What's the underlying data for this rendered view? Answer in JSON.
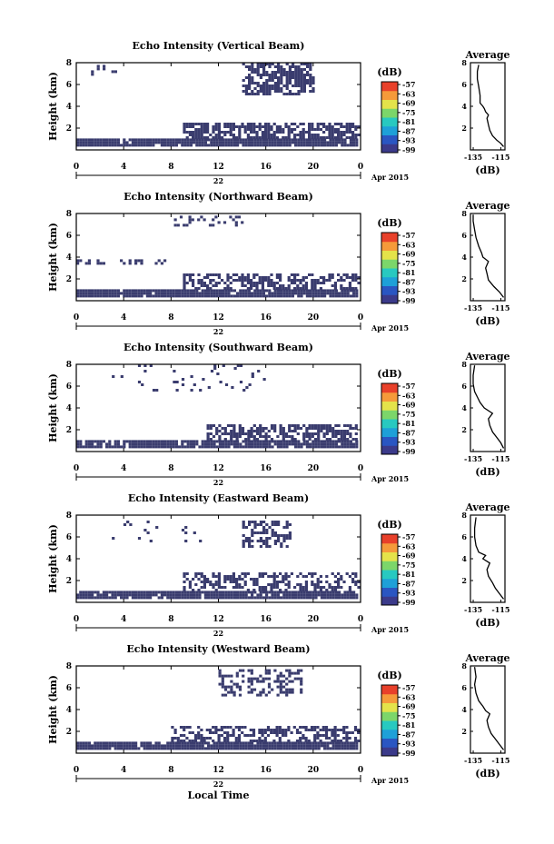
{
  "chart_data": [
    {
      "type": "heatmap",
      "title": "Echo Intensity (Vertical Beam)",
      "ylabel": "Height (km)",
      "xticks": [
        "0",
        "4",
        "8",
        "12",
        "16",
        "20",
        "0"
      ],
      "date_label": "22",
      "month_label": "Apr 2015",
      "ylim": [
        0,
        8
      ],
      "yticks": [
        "2",
        "4",
        "6",
        "8"
      ],
      "colorbar": {
        "unit": "(dB)",
        "ticks": [
          "-57",
          "-63",
          "-69",
          "-75",
          "-81",
          "-87",
          "-93",
          "-99"
        ],
        "range": [
          -99,
          -57
        ]
      },
      "profile": {
        "title": "Average",
        "xlabel": "(dB)",
        "xticks": [
          "-135",
          "-115"
        ],
        "xlim": [
          -137,
          -112
        ],
        "yticks": [
          "2",
          "4",
          "6",
          "8"
        ],
        "points": [
          [
            -113,
            0.3
          ],
          [
            -115,
            0.6
          ],
          [
            -118,
            0.9
          ],
          [
            -121,
            1.3
          ],
          [
            -123,
            1.8
          ],
          [
            -124,
            2.3
          ],
          [
            -125,
            2.9
          ],
          [
            -124,
            3.2
          ],
          [
            -126,
            3.5
          ],
          [
            -127,
            3.8
          ],
          [
            -128,
            4.0
          ],
          [
            -130,
            4.3
          ],
          [
            -130,
            5.0
          ],
          [
            -131,
            5.8
          ],
          [
            -132,
            6.5
          ],
          [
            -132,
            7.2
          ],
          [
            -131,
            7.8
          ]
        ]
      },
      "echo_layers": [
        {
          "t0": 0,
          "t1": 24,
          "h0": 0.3,
          "h1": 1.0,
          "density": 0.95
        },
        {
          "t0": 9,
          "t1": 24,
          "h0": 1.0,
          "h1": 2.4,
          "density": 0.7
        },
        {
          "t0": 14,
          "t1": 20,
          "h0": 5.0,
          "h1": 7.8,
          "density": 0.65
        },
        {
          "t0": 1,
          "t1": 4,
          "h0": 6.8,
          "h1": 7.8,
          "density": 0.15
        }
      ]
    },
    {
      "type": "heatmap",
      "title": "Echo Intensity (Northward Beam)",
      "ylabel": "Height (km)",
      "xticks": [
        "0",
        "4",
        "8",
        "12",
        "16",
        "20",
        "0"
      ],
      "date_label": "22",
      "month_label": "Apr 2015",
      "ylim": [
        0,
        8
      ],
      "yticks": [
        "2",
        "4",
        "6",
        "8"
      ],
      "colorbar": {
        "unit": "(dB)",
        "ticks": [
          "-57",
          "-63",
          "-69",
          "-75",
          "-81",
          "-87",
          "-93",
          "-99"
        ],
        "range": [
          -99,
          -57
        ]
      },
      "profile": {
        "title": "Average",
        "xlabel": "(dB)",
        "xticks": [
          "-135",
          "-115"
        ],
        "xlim": [
          -137,
          -112
        ],
        "yticks": [
          "2",
          "4",
          "6",
          "8"
        ],
        "points": [
          [
            -113,
            0.3
          ],
          [
            -116,
            0.8
          ],
          [
            -120,
            1.3
          ],
          [
            -124,
            1.9
          ],
          [
            -125,
            2.5
          ],
          [
            -126,
            3.0
          ],
          [
            -124,
            3.6
          ],
          [
            -128,
            4.0
          ],
          [
            -129,
            4.4
          ],
          [
            -131,
            5.0
          ],
          [
            -133,
            5.8
          ],
          [
            -134,
            6.5
          ],
          [
            -135,
            7.3
          ],
          [
            -135,
            7.9
          ]
        ]
      },
      "echo_layers": [
        {
          "t0": 0,
          "t1": 24,
          "h0": 0.3,
          "h1": 1.0,
          "density": 0.95
        },
        {
          "t0": 9,
          "t1": 24,
          "h0": 1.0,
          "h1": 2.3,
          "density": 0.55
        },
        {
          "t0": 0,
          "t1": 8,
          "h0": 3.3,
          "h1": 3.8,
          "density": 0.25
        },
        {
          "t0": 8,
          "t1": 14,
          "h0": 6.8,
          "h1": 7.8,
          "density": 0.3
        }
      ]
    },
    {
      "type": "heatmap",
      "title": "Echo Intensity (Southward Beam)",
      "ylabel": "Height (km)",
      "xticks": [
        "0",
        "4",
        "8",
        "12",
        "16",
        "20",
        "0"
      ],
      "date_label": "22",
      "month_label": "Apr 2015",
      "ylim": [
        0,
        8
      ],
      "yticks": [
        "2",
        "4",
        "6",
        "8"
      ],
      "colorbar": {
        "unit": "(dB)",
        "ticks": [
          "-57",
          "-63",
          "-69",
          "-75",
          "-81",
          "-87",
          "-93",
          "-99"
        ],
        "range": [
          -99,
          -57
        ]
      },
      "profile": {
        "title": "Average",
        "xlabel": "(dB)",
        "xticks": [
          "-135",
          "-115"
        ],
        "xlim": [
          -137,
          -112
        ],
        "yticks": [
          "2",
          "4",
          "6",
          "8"
        ],
        "points": [
          [
            -113,
            0.3
          ],
          [
            -115,
            0.8
          ],
          [
            -118,
            1.3
          ],
          [
            -121,
            1.8
          ],
          [
            -123,
            2.4
          ],
          [
            -124,
            3.0
          ],
          [
            -121,
            3.5
          ],
          [
            -127,
            4.0
          ],
          [
            -130,
            4.5
          ],
          [
            -132,
            5.0
          ],
          [
            -134,
            5.5
          ],
          [
            -135,
            6.2
          ],
          [
            -135,
            7.0
          ],
          [
            -134,
            7.9
          ]
        ]
      },
      "echo_layers": [
        {
          "t0": 0,
          "t1": 24,
          "h0": 0.3,
          "h1": 1.0,
          "density": 0.9
        },
        {
          "t0": 11,
          "t1": 24,
          "h0": 1.0,
          "h1": 2.3,
          "density": 0.6
        },
        {
          "t0": 3,
          "t1": 16,
          "h0": 5.5,
          "h1": 7.8,
          "density": 0.08
        }
      ]
    },
    {
      "type": "heatmap",
      "title": "Echo Intensity (Eastward Beam)",
      "ylabel": "Height (km)",
      "xticks": [
        "0",
        "4",
        "8",
        "12",
        "16",
        "20",
        "0"
      ],
      "date_label": "22",
      "month_label": "Apr 2015",
      "ylim": [
        0,
        8
      ],
      "yticks": [
        "2",
        "4",
        "6",
        "8"
      ],
      "colorbar": {
        "unit": "(dB)",
        "ticks": [
          "-57",
          "-63",
          "-69",
          "-75",
          "-81",
          "-87",
          "-93",
          "-99"
        ],
        "range": [
          -99,
          -57
        ]
      },
      "profile": {
        "title": "Average",
        "xlabel": "(dB)",
        "xticks": [
          "-135",
          "-115"
        ],
        "xlim": [
          -137,
          -112
        ],
        "yticks": [
          "2",
          "4",
          "6",
          "8"
        ],
        "points": [
          [
            -113,
            0.3
          ],
          [
            -116,
            0.8
          ],
          [
            -119,
            1.3
          ],
          [
            -121,
            1.8
          ],
          [
            -124,
            2.4
          ],
          [
            -125,
            3.0
          ],
          [
            -123,
            3.6
          ],
          [
            -128,
            4.0
          ],
          [
            -126,
            4.3
          ],
          [
            -131,
            4.6
          ],
          [
            -133,
            5.2
          ],
          [
            -134,
            6.0
          ],
          [
            -134,
            6.8
          ],
          [
            -133,
            7.8
          ]
        ]
      },
      "echo_layers": [
        {
          "t0": 0,
          "t1": 24,
          "h0": 0.3,
          "h1": 1.0,
          "density": 0.95
        },
        {
          "t0": 9,
          "t1": 24,
          "h0": 1.0,
          "h1": 2.6,
          "density": 0.45
        },
        {
          "t0": 14,
          "t1": 18,
          "h0": 5.0,
          "h1": 7.3,
          "density": 0.55
        },
        {
          "t0": 3,
          "t1": 11,
          "h0": 5.5,
          "h1": 7.3,
          "density": 0.08
        }
      ]
    },
    {
      "type": "heatmap",
      "title": "Echo Intensity (Westward Beam)",
      "ylabel": "Height (km)",
      "xticks": [
        "0",
        "4",
        "8",
        "12",
        "16",
        "20",
        "0"
      ],
      "date_label": "22",
      "month_label": "Apr 2015",
      "ylim": [
        0,
        8
      ],
      "yticks": [
        "2",
        "4",
        "6",
        "8"
      ],
      "colorbar": {
        "unit": "(dB)",
        "ticks": [
          "-57",
          "-63",
          "-69",
          "-75",
          "-81",
          "-87",
          "-93",
          "-99"
        ],
        "range": [
          -99,
          -57
        ]
      },
      "profile": {
        "title": "Average",
        "xlabel": "(dB)",
        "xticks": [
          "-135",
          "-115"
        ],
        "xlim": [
          -137,
          -112
        ],
        "yticks": [
          "2",
          "4",
          "6",
          "8"
        ],
        "points": [
          [
            -113,
            0.3
          ],
          [
            -116,
            0.8
          ],
          [
            -119,
            1.3
          ],
          [
            -122,
            1.8
          ],
          [
            -124,
            2.4
          ],
          [
            -125,
            3.0
          ],
          [
            -123,
            3.6
          ],
          [
            -126,
            3.9
          ],
          [
            -128,
            4.3
          ],
          [
            -131,
            4.8
          ],
          [
            -133,
            5.5
          ],
          [
            -134,
            6.3
          ],
          [
            -133,
            7.0
          ],
          [
            -134,
            7.9
          ]
        ]
      },
      "echo_layers": [
        {
          "t0": 0,
          "t1": 24,
          "h0": 0.3,
          "h1": 1.0,
          "density": 0.95
        },
        {
          "t0": 8,
          "t1": 24,
          "h0": 1.0,
          "h1": 2.4,
          "density": 0.45
        },
        {
          "t0": 12,
          "t1": 19,
          "h0": 5.2,
          "h1": 7.5,
          "density": 0.4
        }
      ]
    }
  ],
  "footer": {
    "xlabel": "Local Time"
  },
  "colors": {
    "echo_fill": "#3a3c6e",
    "colorbar": [
      "#3b3a8a",
      "#2a56c2",
      "#1ea0d8",
      "#28c9c0",
      "#7cd66a",
      "#e4e34a",
      "#f59a3a",
      "#e8402a"
    ]
  }
}
